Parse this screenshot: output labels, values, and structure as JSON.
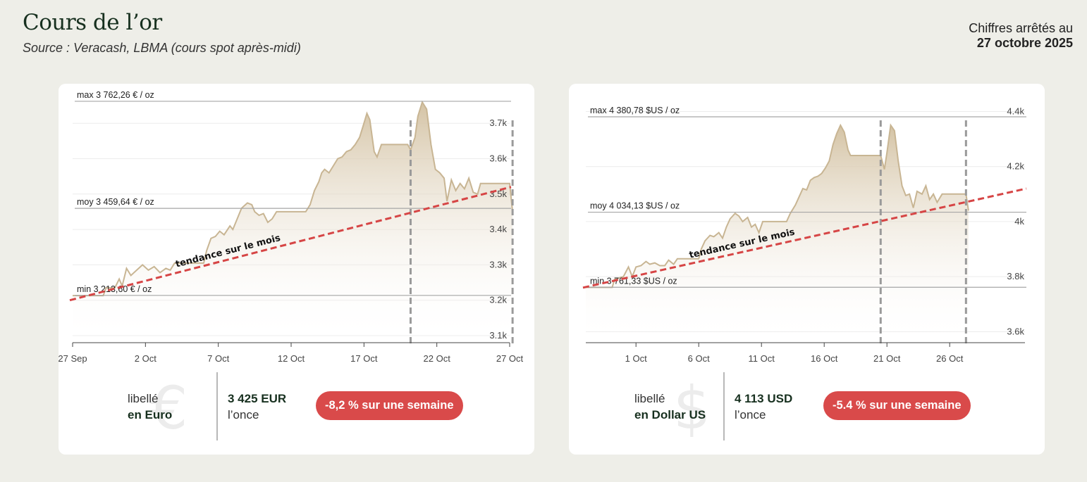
{
  "header": {
    "title": "Cours de l’or",
    "source": "Source : Veracash, LBMA (cours spot après-midi)",
    "asof_label": "Chiffres arrêtés au",
    "asof_date": "27 octobre 2025"
  },
  "colors": {
    "area_line": "#c8b593",
    "area_fill_top": "#d2c0a0",
    "trend": "#d64545",
    "badge": "#d94a4a"
  },
  "chart_data": [
    {
      "type": "area",
      "currency_symbol": "€",
      "libelle": "libellé",
      "currency_label": "en Euro",
      "price_value": "3 425 EUR",
      "price_unit": "l’once",
      "weekly_change": "-8,2 % sur une semaine",
      "max_label": "max 3 762,26 € / oz",
      "moy_label": "moy 3 459,64 € / oz",
      "min_label": "min 3 213,60 € / oz",
      "max_value": 3762.26,
      "moy_value": 3459.64,
      "min_value": 3213.6,
      "trend_label": "tendance sur le mois",
      "trend_start": 3200,
      "trend_end": 3520,
      "ylim": [
        3080,
        3780
      ],
      "xlim": [
        0,
        30
      ],
      "y_ticks": [
        {
          "value": 3700,
          "label": "3.7k"
        },
        {
          "value": 3600,
          "label": "3.6k"
        },
        {
          "value": 3500,
          "label": "3.5k"
        },
        {
          "value": 3400,
          "label": "3.4k"
        },
        {
          "value": 3300,
          "label": "3.3k"
        },
        {
          "value": 3200,
          "label": "3.2k"
        },
        {
          "value": 3100,
          "label": "3.1k"
        }
      ],
      "x_ticks": [
        {
          "value": 0,
          "label": "27 Sep"
        },
        {
          "value": 5,
          "label": "2 Oct"
        },
        {
          "value": 10,
          "label": "7 Oct"
        },
        {
          "value": 15,
          "label": "12 Oct"
        },
        {
          "value": 20,
          "label": "17 Oct"
        },
        {
          "value": 25,
          "label": "22 Oct"
        },
        {
          "value": 30,
          "label": "27 Oct"
        }
      ],
      "dashed_x": [
        23.2,
        30.2
      ],
      "points": [
        [
          0,
          3213
        ],
        [
          2.1,
          3213
        ],
        [
          2.3,
          3235
        ],
        [
          2.9,
          3235
        ],
        [
          3.2,
          3260
        ],
        [
          3.4,
          3240
        ],
        [
          3.7,
          3290
        ],
        [
          4,
          3270
        ],
        [
          4.4,
          3285
        ],
        [
          4.8,
          3300
        ],
        [
          5.2,
          3285
        ],
        [
          5.6,
          3295
        ],
        [
          6,
          3278
        ],
        [
          6.4,
          3290
        ],
        [
          6.7,
          3285
        ],
        [
          7,
          3305
        ],
        [
          9,
          3305
        ],
        [
          9.2,
          3340
        ],
        [
          9.5,
          3375
        ],
        [
          9.8,
          3380
        ],
        [
          10.1,
          3395
        ],
        [
          10.4,
          3385
        ],
        [
          10.8,
          3410
        ],
        [
          11,
          3400
        ],
        [
          11.3,
          3430
        ],
        [
          11.6,
          3460
        ],
        [
          12,
          3475
        ],
        [
          12.3,
          3470
        ],
        [
          12.5,
          3450
        ],
        [
          12.8,
          3440
        ],
        [
          13.1,
          3445
        ],
        [
          13.4,
          3420
        ],
        [
          13.7,
          3430
        ],
        [
          14,
          3450
        ],
        [
          16,
          3450
        ],
        [
          16.3,
          3470
        ],
        [
          16.6,
          3510
        ],
        [
          16.9,
          3535
        ],
        [
          17.1,
          3560
        ],
        [
          17.3,
          3570
        ],
        [
          17.6,
          3560
        ],
        [
          17.9,
          3580
        ],
        [
          18.2,
          3600
        ],
        [
          18.5,
          3605
        ],
        [
          18.8,
          3620
        ],
        [
          19.1,
          3625
        ],
        [
          19.4,
          3640
        ],
        [
          19.7,
          3660
        ],
        [
          20,
          3700
        ],
        [
          20.2,
          3728
        ],
        [
          20.4,
          3710
        ],
        [
          20.7,
          3620
        ],
        [
          20.9,
          3605
        ],
        [
          21.2,
          3640
        ],
        [
          23,
          3640
        ],
        [
          23.2,
          3625
        ],
        [
          23.5,
          3660
        ],
        [
          23.7,
          3720
        ],
        [
          24,
          3760
        ],
        [
          24.3,
          3740
        ],
        [
          24.6,
          3640
        ],
        [
          24.9,
          3570
        ],
        [
          25.2,
          3560
        ],
        [
          25.5,
          3545
        ],
        [
          25.7,
          3480
        ],
        [
          26,
          3540
        ],
        [
          26.3,
          3510
        ],
        [
          26.6,
          3530
        ],
        [
          26.9,
          3515
        ],
        [
          27.2,
          3545
        ],
        [
          27.5,
          3505
        ],
        [
          27.8,
          3500
        ],
        [
          28,
          3530
        ],
        [
          30,
          3530
        ],
        [
          30.2,
          3450
        ]
      ]
    },
    {
      "type": "area",
      "currency_symbol": "$",
      "libelle": "libellé",
      "currency_label": "en Dollar US",
      "price_value": "4 113 USD",
      "price_unit": "l’once",
      "weekly_change": "-5.4 % sur une semaine",
      "max_label": "max 4 380,78 $US / oz",
      "moy_label": "moy 4 034,13 $US / oz",
      "min_label": "min 3 761,33 $US / oz",
      "max_value": 4380.78,
      "moy_value": 4034.13,
      "min_value": 3761.33,
      "trend_label": "tendance sur le mois",
      "trend_start": 3760,
      "trend_end": 4120,
      "ylim": [
        3560,
        4460
      ],
      "xlim": [
        -4,
        31
      ],
      "y_ticks": [
        {
          "value": 4400,
          "label": "4.4k"
        },
        {
          "value": 4200,
          "label": "4.2k"
        },
        {
          "value": 4000,
          "label": "4k"
        },
        {
          "value": 3800,
          "label": "3.8k"
        },
        {
          "value": 3600,
          "label": "3.6k"
        }
      ],
      "x_ticks": [
        {
          "value": 0,
          "label": "1 Oct"
        },
        {
          "value": 5,
          "label": "6 Oct"
        },
        {
          "value": 10,
          "label": "11 Oct"
        },
        {
          "value": 15,
          "label": "16 Oct"
        },
        {
          "value": 20,
          "label": "21 Oct"
        },
        {
          "value": 25,
          "label": "26 Oct"
        }
      ],
      "dashed_x": [
        19.5,
        26.3
      ],
      "points": [
        [
          -4,
          3761
        ],
        [
          -1.9,
          3761
        ],
        [
          -1.7,
          3790
        ],
        [
          -1,
          3800
        ],
        [
          -0.6,
          3835
        ],
        [
          -0.3,
          3800
        ],
        [
          0,
          3835
        ],
        [
          0.4,
          3840
        ],
        [
          0.8,
          3855
        ],
        [
          1.1,
          3845
        ],
        [
          1.5,
          3850
        ],
        [
          1.9,
          3840
        ],
        [
          2.3,
          3840
        ],
        [
          2.6,
          3860
        ],
        [
          3,
          3845
        ],
        [
          3.3,
          3865
        ],
        [
          5,
          3865
        ],
        [
          5.2,
          3900
        ],
        [
          5.5,
          3930
        ],
        [
          5.9,
          3950
        ],
        [
          6.2,
          3945
        ],
        [
          6.6,
          3960
        ],
        [
          6.9,
          3940
        ],
        [
          7.2,
          3980
        ],
        [
          7.5,
          4010
        ],
        [
          7.9,
          4030
        ],
        [
          8.2,
          4020
        ],
        [
          8.5,
          4000
        ],
        [
          8.9,
          4015
        ],
        [
          9.2,
          3980
        ],
        [
          9.5,
          3990
        ],
        [
          9.8,
          3960
        ],
        [
          10.1,
          4000
        ],
        [
          12,
          4000
        ],
        [
          12.3,
          4030
        ],
        [
          12.7,
          4060
        ],
        [
          13,
          4090
        ],
        [
          13.3,
          4120
        ],
        [
          13.6,
          4115
        ],
        [
          13.9,
          4150
        ],
        [
          14.2,
          4160
        ],
        [
          14.5,
          4165
        ],
        [
          14.8,
          4175
        ],
        [
          15.1,
          4195
        ],
        [
          15.4,
          4220
        ],
        [
          15.7,
          4280
        ],
        [
          16,
          4320
        ],
        [
          16.3,
          4350
        ],
        [
          16.6,
          4325
        ],
        [
          16.9,
          4260
        ],
        [
          17.1,
          4240
        ],
        [
          19.5,
          4240
        ],
        [
          19.8,
          4190
        ],
        [
          20,
          4250
        ],
        [
          20.3,
          4350
        ],
        [
          20.6,
          4330
        ],
        [
          20.9,
          4220
        ],
        [
          21.2,
          4130
        ],
        [
          21.5,
          4095
        ],
        [
          21.8,
          4100
        ],
        [
          22.1,
          4050
        ],
        [
          22.4,
          4110
        ],
        [
          22.8,
          4100
        ],
        [
          23.1,
          4130
        ],
        [
          23.4,
          4080
        ],
        [
          23.7,
          4100
        ],
        [
          24,
          4070
        ],
        [
          24.4,
          4100
        ],
        [
          26.3,
          4100
        ],
        [
          26.5,
          4040
        ]
      ]
    }
  ]
}
